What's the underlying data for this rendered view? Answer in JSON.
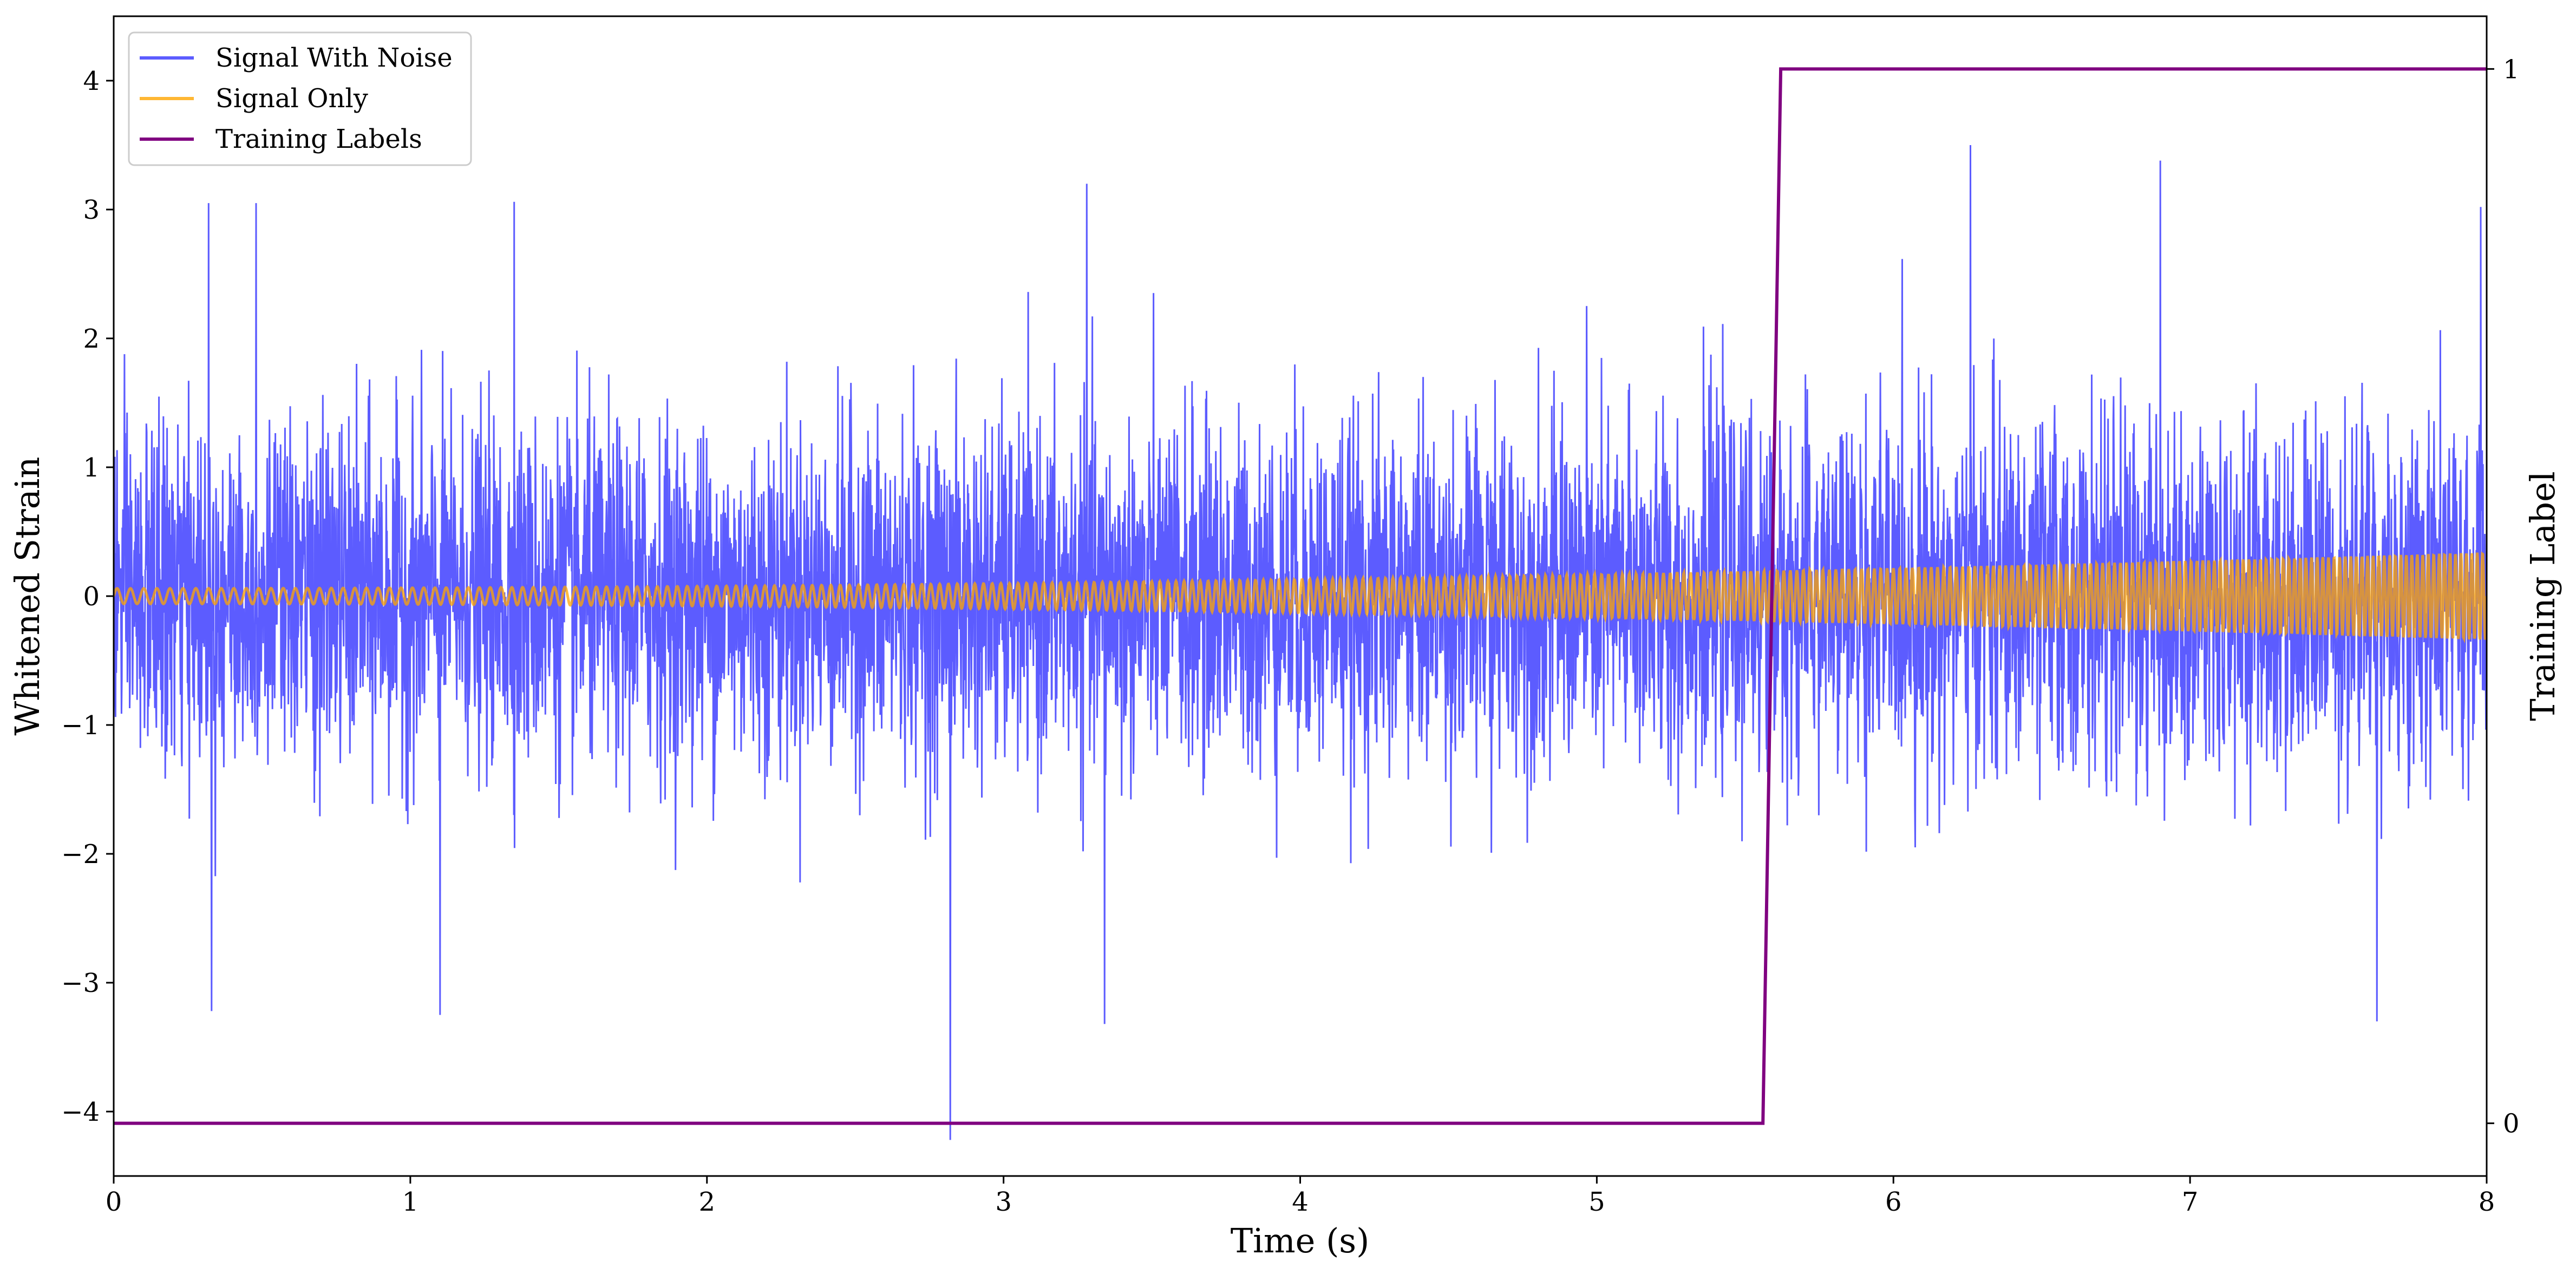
{
  "chart_data": {
    "type": "line",
    "title": "",
    "xlabel": "Time (s)",
    "ylabel": "Whitened Strain",
    "ylabel_right": "Training Label",
    "xlim": [
      0,
      8
    ],
    "ylim": [
      -4.5,
      4.5
    ],
    "ylim_right": [
      -0.05,
      1.05
    ],
    "x_ticks": [
      0,
      1,
      2,
      3,
      4,
      5,
      6,
      7,
      8
    ],
    "x_tick_labels": [
      "0",
      "1",
      "2",
      "3",
      "4",
      "5",
      "6",
      "7",
      "8"
    ],
    "y_ticks": [
      -4,
      -3,
      -2,
      -1,
      0,
      1,
      2,
      3,
      4
    ],
    "y_tick_labels": [
      "−4",
      "−3",
      "−2",
      "−1",
      "0",
      "1",
      "2",
      "3",
      "4"
    ],
    "y_right_ticks": [
      0,
      1
    ],
    "y_right_tick_labels": [
      "0",
      "1"
    ],
    "grid": false,
    "legend_position": "upper-left",
    "series": [
      {
        "name": "Signal With Noise",
        "axis": "left",
        "color": "#3333ff",
        "noise_std": 0.65,
        "includes_signal": true,
        "peaks": [
          {
            "x": 0.32,
            "y": 3.05
          },
          {
            "x": 0.48,
            "y": 3.05
          },
          {
            "x": 1.35,
            "y": 3.06
          },
          {
            "x": 3.28,
            "y": 3.2
          },
          {
            "x": 6.26,
            "y": 3.5
          },
          {
            "x": 6.9,
            "y": 3.38
          },
          {
            "x": 7.98,
            "y": 3.02
          },
          {
            "x": 0.33,
            "y": -3.22
          },
          {
            "x": 1.1,
            "y": -3.25
          },
          {
            "x": 2.82,
            "y": -4.22
          },
          {
            "x": 3.34,
            "y": -3.32
          },
          {
            "x": 7.63,
            "y": -3.3
          }
        ]
      },
      {
        "name": "Signal Only",
        "axis": "left",
        "color": "#ffa500",
        "chirp": {
          "start_frequency_hz": 22,
          "end_frequency_hz": 55,
          "start_amplitude": 0.06,
          "end_amplitude": 0.34
        }
      },
      {
        "name": "Training Labels",
        "axis": "right",
        "color": "#800080",
        "points": [
          [
            0,
            0
          ],
          [
            5.56,
            0
          ],
          [
            5.62,
            1
          ],
          [
            8,
            1
          ]
        ]
      }
    ]
  }
}
